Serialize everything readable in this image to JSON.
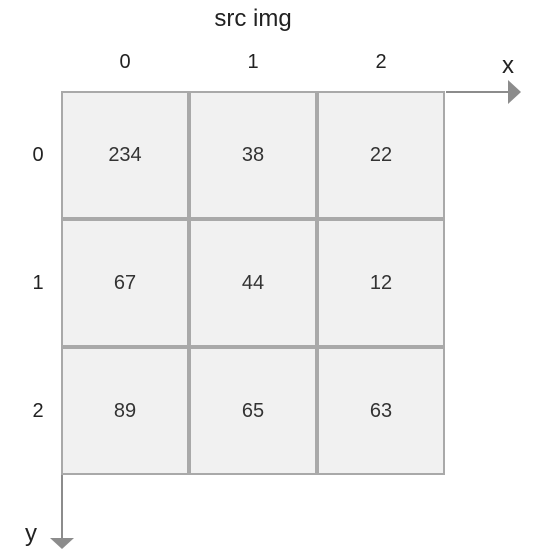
{
  "title": "src img",
  "axes": {
    "x_label": "x",
    "y_label": "y",
    "color": "#8c8c8c"
  },
  "column_labels": [
    "0",
    "1",
    "2"
  ],
  "row_labels": [
    "0",
    "1",
    "2"
  ],
  "grid": [
    [
      "234",
      "38",
      "22"
    ],
    [
      "67",
      "44",
      "12"
    ],
    [
      "89",
      "65",
      "63"
    ]
  ],
  "colors": {
    "cell_fill": "#f1f1f1",
    "cell_border": "#a9a9a9",
    "text": "#222222"
  }
}
